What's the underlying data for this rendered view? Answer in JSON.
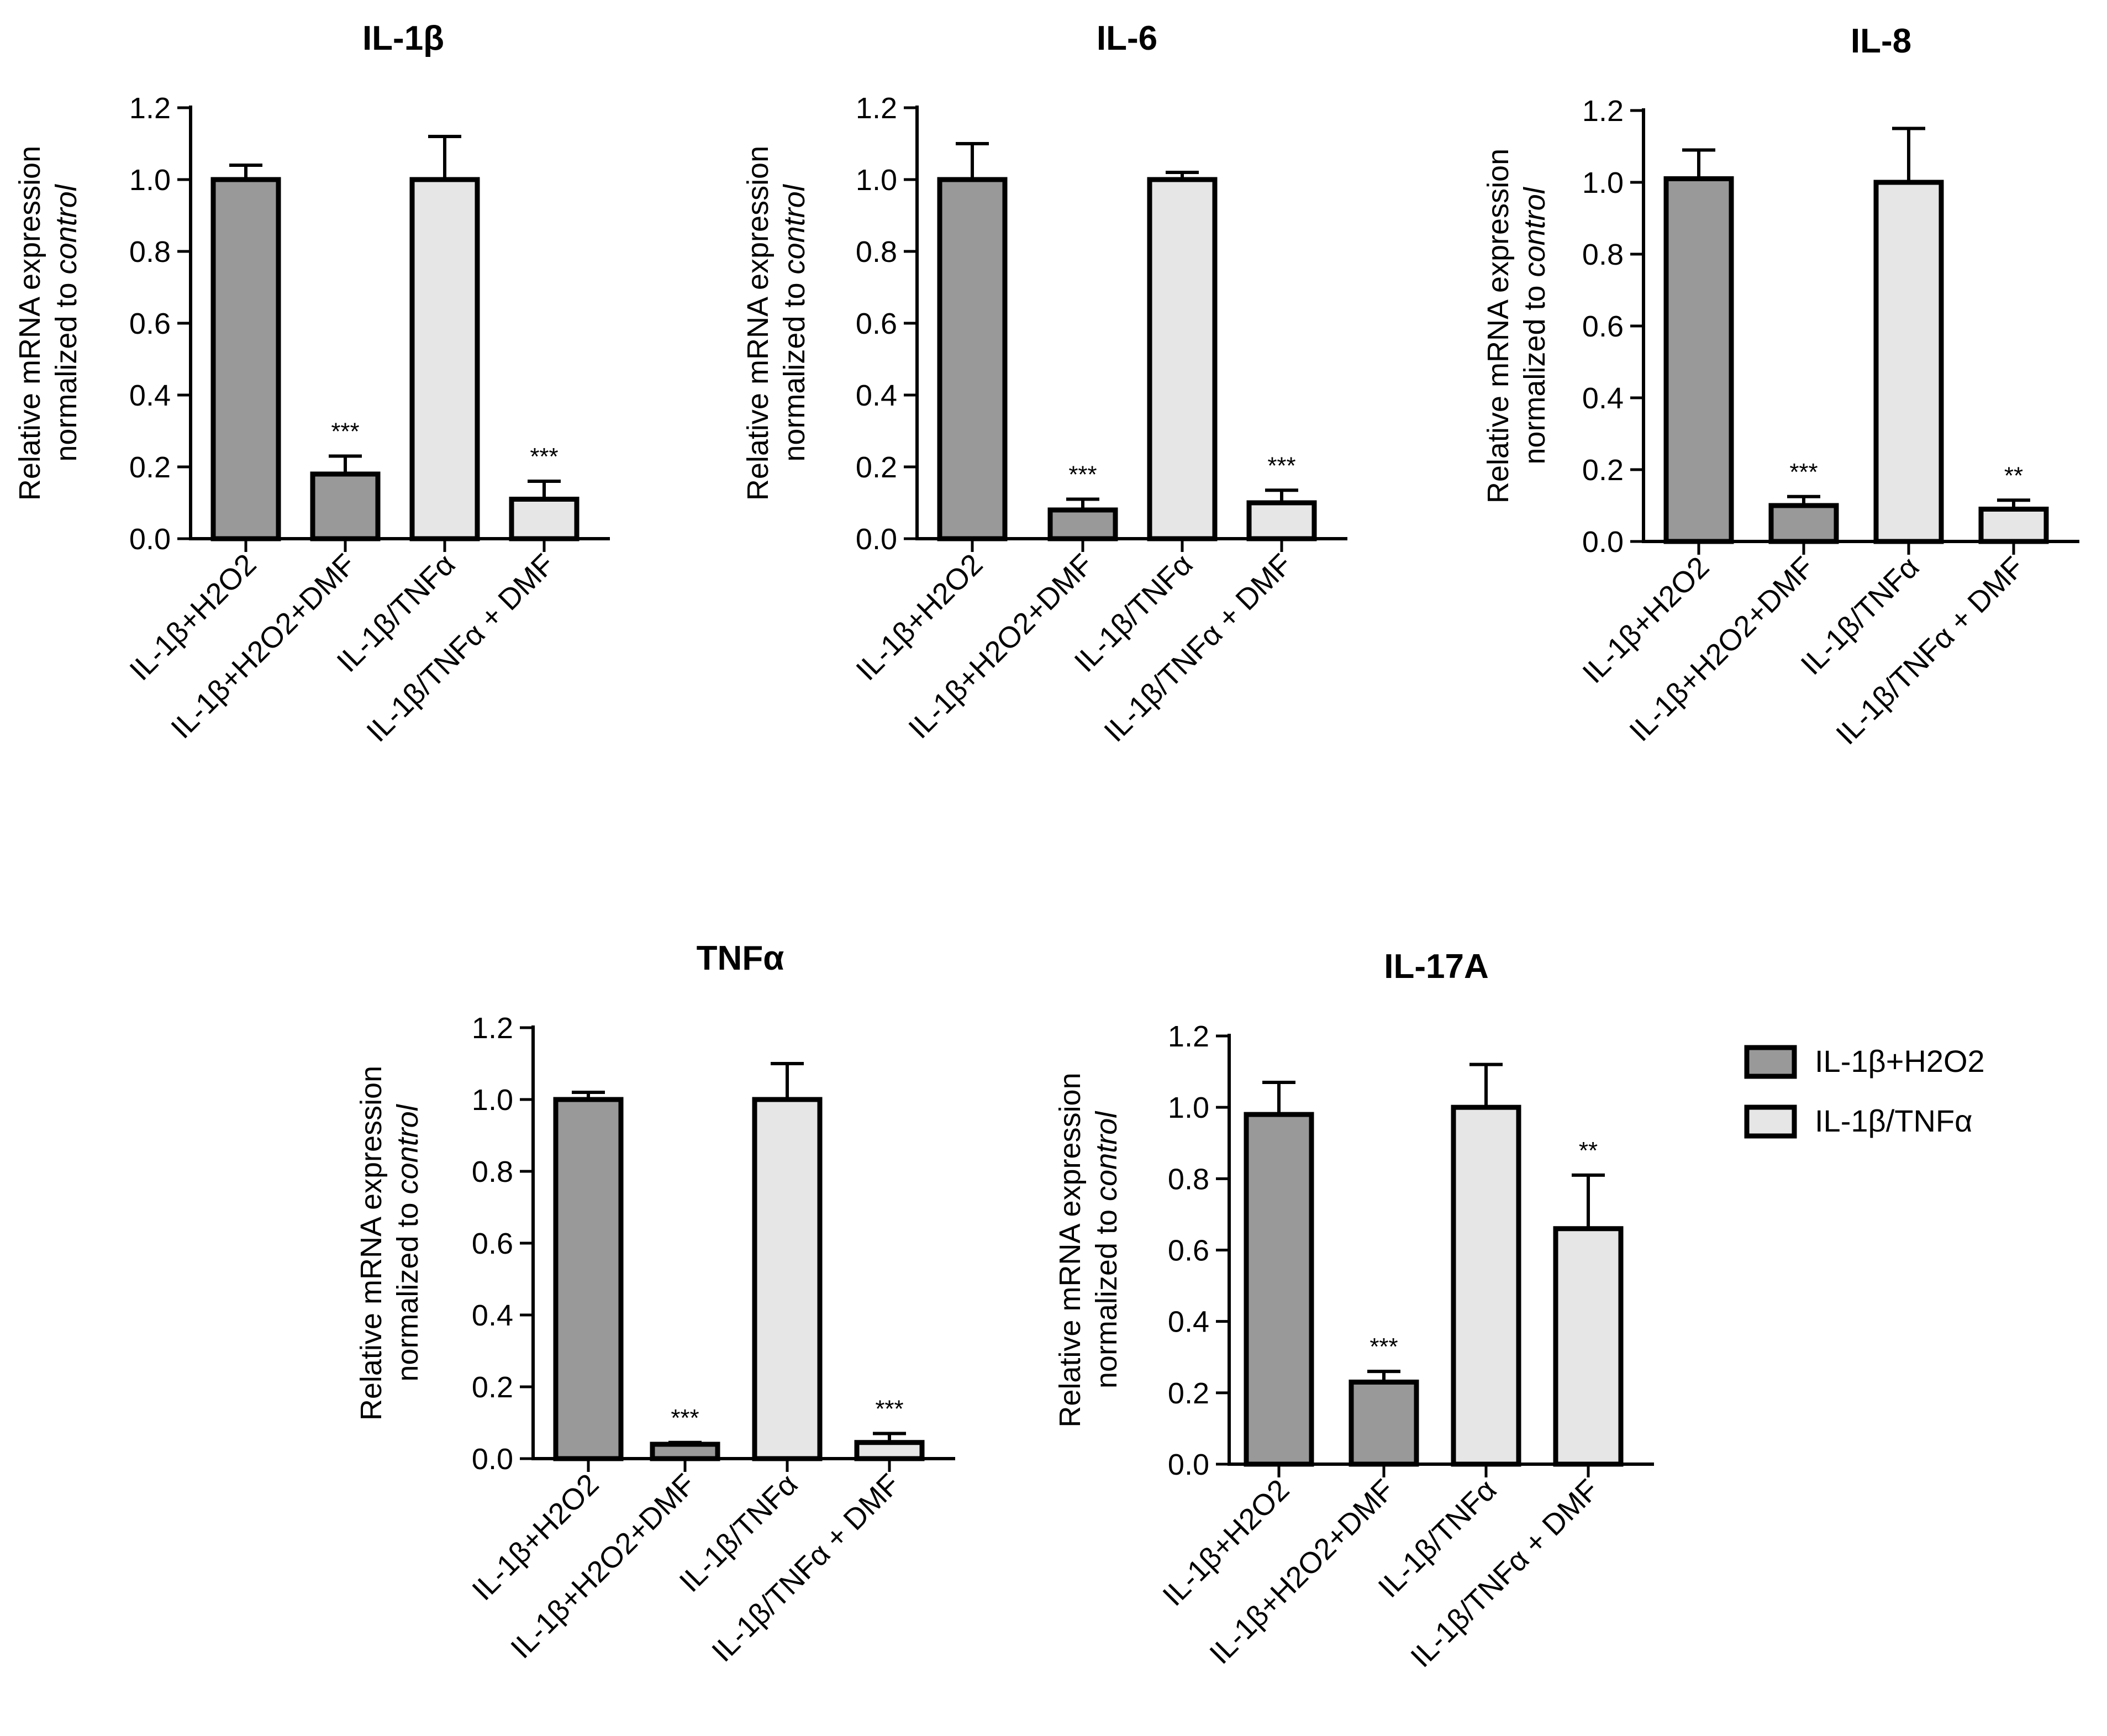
{
  "colors": {
    "dark_bar": "#999999",
    "light_bar": "#e6e6e6",
    "stroke": "#000000"
  },
  "legend": {
    "items": [
      {
        "label": "IL-1β+H2O2",
        "color": "#999999"
      },
      {
        "label": "IL-1β/TNFα",
        "color": "#e6e6e6"
      }
    ]
  },
  "chart_data": [
    {
      "type": "bar",
      "title": "IL-1β",
      "ylabel_line1": "Relative mRNA expression",
      "ylabel_line2_prefix": "normalized to ",
      "ylabel_line2_italic": "control",
      "ylim": [
        0,
        1.2
      ],
      "yticks": [
        "0.0",
        "0.2",
        "0.4",
        "0.6",
        "0.8",
        "1.0",
        "1.2"
      ],
      "categories": [
        "IL-1β+H2O2",
        "IL-1β+H2O2+DMF",
        "IL-1β/TNFα",
        "IL-1β/TNFα + DMF"
      ],
      "values": [
        1.0,
        0.18,
        1.0,
        0.11
      ],
      "errors": [
        0.04,
        0.05,
        0.12,
        0.05
      ],
      "bar_colors": [
        "dark",
        "dark",
        "light",
        "light"
      ],
      "significance": [
        "",
        "***",
        "",
        "***"
      ]
    },
    {
      "type": "bar",
      "title": "IL-6",
      "ylabel_line1": "Relative mRNA expression",
      "ylabel_line2_prefix": "normalized to ",
      "ylabel_line2_italic": "control",
      "ylim": [
        0,
        1.2
      ],
      "yticks": [
        "0.0",
        "0.2",
        "0.4",
        "0.6",
        "0.8",
        "1.0",
        "1.2"
      ],
      "categories": [
        "IL-1β+H2O2",
        "IL-1β+H2O2+DMF",
        "IL-1β/TNFα",
        "IL-1β/TNFα + DMF"
      ],
      "values": [
        1.0,
        0.08,
        1.0,
        0.1
      ],
      "errors": [
        0.1,
        0.03,
        0.02,
        0.035
      ],
      "bar_colors": [
        "dark",
        "dark",
        "light",
        "light"
      ],
      "significance": [
        "",
        "***",
        "",
        "***"
      ]
    },
    {
      "type": "bar",
      "title": "IL-8",
      "ylabel_line1": "Relative mRNA expression",
      "ylabel_line2_prefix": "normalized to ",
      "ylabel_line2_italic": "control",
      "ylim": [
        0,
        1.2
      ],
      "yticks": [
        "0.0",
        "0.2",
        "0.4",
        "0.6",
        "0.8",
        "1.0",
        "1.2"
      ],
      "categories": [
        "IL-1β+H2O2",
        "IL-1β+H2O2+DMF",
        "IL-1β/TNFα",
        "IL-1β/TNFα + DMF"
      ],
      "values": [
        1.01,
        0.1,
        1.0,
        0.09
      ],
      "errors": [
        0.08,
        0.025,
        0.15,
        0.025
      ],
      "bar_colors": [
        "dark",
        "dark",
        "light",
        "light"
      ],
      "significance": [
        "",
        "***",
        "",
        "**"
      ]
    },
    {
      "type": "bar",
      "title": "TNFα",
      "ylabel_line1": "Relative mRNA expression",
      "ylabel_line2_prefix": "normalized to ",
      "ylabel_line2_italic": "control",
      "ylim": [
        0,
        1.2
      ],
      "yticks": [
        "0.0",
        "0.2",
        "0.4",
        "0.6",
        "0.8",
        "1.0",
        "1.2"
      ],
      "categories": [
        "IL-1β+H2O2",
        "IL-1β+H2O2+DMF",
        "IL-1β/TNFα",
        "IL-1β/TNFα + DMF"
      ],
      "values": [
        1.0,
        0.04,
        1.0,
        0.045
      ],
      "errors": [
        0.02,
        0.005,
        0.1,
        0.025
      ],
      "bar_colors": [
        "dark",
        "dark",
        "light",
        "light"
      ],
      "significance": [
        "",
        "***",
        "",
        "***"
      ]
    },
    {
      "type": "bar",
      "title": "IL-17A",
      "ylabel_line1": "Relative mRNA expression",
      "ylabel_line2_prefix": "normalized to ",
      "ylabel_line2_italic": "control",
      "ylim": [
        0,
        1.2
      ],
      "yticks": [
        "0.0",
        "0.2",
        "0.4",
        "0.6",
        "0.8",
        "1.0",
        "1.2"
      ],
      "categories": [
        "IL-1β+H2O2",
        "IL-1β+H2O2+DMF",
        "IL-1β/TNFα",
        "IL-1β/TNFα + DMF"
      ],
      "values": [
        0.98,
        0.23,
        1.0,
        0.66
      ],
      "errors": [
        0.09,
        0.03,
        0.12,
        0.15
      ],
      "bar_colors": [
        "dark",
        "dark",
        "light",
        "light"
      ],
      "significance": [
        "",
        "***",
        "",
        "**"
      ]
    }
  ]
}
